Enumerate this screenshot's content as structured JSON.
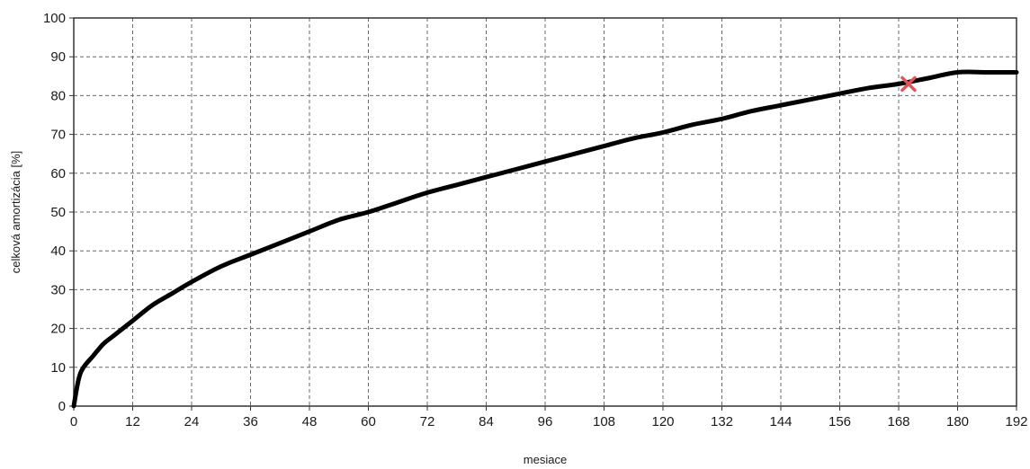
{
  "chart_data": {
    "type": "line",
    "title": "",
    "xlabel": "mesiace",
    "ylabel": "celková amortizácia [%]",
    "xlim": [
      0,
      192
    ],
    "ylim": [
      0,
      100
    ],
    "x_ticks": [
      0,
      12,
      24,
      36,
      48,
      60,
      72,
      84,
      96,
      108,
      120,
      132,
      144,
      156,
      168,
      180,
      192
    ],
    "y_ticks": [
      0,
      10,
      20,
      30,
      40,
      50,
      60,
      70,
      80,
      90,
      100
    ],
    "grid": true,
    "legend": "none",
    "series": [
      {
        "color": "#000000",
        "x": [
          0,
          1,
          2,
          4,
          6,
          8,
          12,
          16,
          20,
          24,
          30,
          36,
          42,
          48,
          54,
          60,
          66,
          72,
          78,
          84,
          90,
          96,
          102,
          108,
          114,
          120,
          126,
          132,
          138,
          144,
          150,
          156,
          162,
          168,
          174,
          180,
          186,
          192
        ],
        "y": [
          0,
          7,
          10,
          13,
          16,
          18,
          22,
          26,
          29,
          32,
          36,
          39,
          42,
          45,
          48,
          50,
          52.5,
          55,
          57,
          59,
          61,
          63,
          65,
          67,
          69,
          70.5,
          72.5,
          74,
          76,
          77.5,
          79,
          80.5,
          82,
          83,
          84.5,
          86,
          86,
          86
        ]
      }
    ],
    "annotations": [
      {
        "type": "point",
        "marker": "x",
        "x": 170,
        "y": 83,
        "color": "#e05555"
      }
    ]
  }
}
